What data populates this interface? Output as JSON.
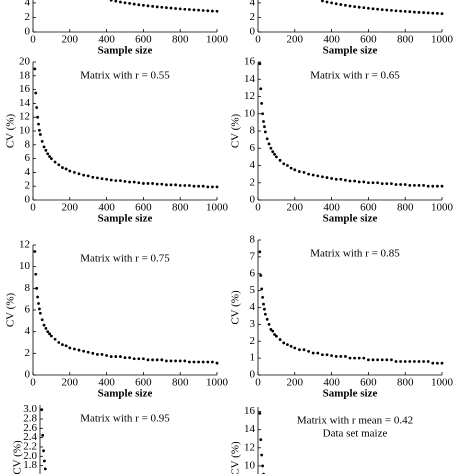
{
  "chart_data": [
    {
      "type": "scatter",
      "color": "#000000",
      "xlabel": "Sample size",
      "x": [
        425,
        450,
        475,
        500,
        525,
        550,
        575,
        600,
        625,
        650,
        675,
        700,
        725,
        750,
        775,
        800,
        825,
        850,
        875,
        900,
        925,
        950,
        975,
        1000
      ],
      "values": [
        4.37,
        4.24,
        4.13,
        4.02,
        3.93,
        3.84,
        3.75,
        3.67,
        3.6,
        3.53,
        3.46,
        3.4,
        3.34,
        3.29,
        3.23,
        3.18,
        3.13,
        3.09,
        3.04,
        3.0,
        2.96,
        2.92,
        2.88,
        2.85
      ],
      "xlim": [
        0,
        1000
      ],
      "xticks": [
        0,
        200,
        400,
        600,
        800,
        1000
      ],
      "ylim": [
        0,
        4.4
      ],
      "yticks": [
        0,
        2,
        4
      ]
    },
    {
      "type": "scatter",
      "color": "#000000",
      "xlabel": "Sample size",
      "x": [
        350,
        375,
        400,
        425,
        450,
        475,
        500,
        525,
        550,
        575,
        600,
        625,
        650,
        675,
        700,
        725,
        750,
        775,
        800,
        825,
        850,
        875,
        900,
        925,
        950,
        975,
        1000
      ],
      "values": [
        4.28,
        4.13,
        4.0,
        3.88,
        3.77,
        3.67,
        3.58,
        3.49,
        3.41,
        3.34,
        3.27,
        3.2,
        3.14,
        3.08,
        3.02,
        2.97,
        2.92,
        2.87,
        2.83,
        2.79,
        2.74,
        2.7,
        2.67,
        2.63,
        2.6,
        2.56,
        2.53
      ],
      "xlim": [
        0,
        1000
      ],
      "xticks": [
        0,
        200,
        400,
        600,
        800,
        1000
      ],
      "ylim": [
        0,
        4.4
      ],
      "yticks": [
        0,
        2,
        4
      ]
    },
    {
      "type": "scatter",
      "color": "#000000",
      "title": "Matrix with r = 0.55",
      "xlabel": "Sample size",
      "ylabel": "CV (%)",
      "x": [
        10,
        15,
        20,
        25,
        30,
        35,
        40,
        50,
        60,
        70,
        80,
        90,
        100,
        120,
        140,
        160,
        180,
        200,
        225,
        250,
        275,
        300,
        325,
        350,
        375,
        400,
        425,
        450,
        475,
        500,
        525,
        550,
        575,
        600,
        625,
        650,
        675,
        700,
        725,
        750,
        775,
        800,
        825,
        850,
        875,
        900,
        925,
        950,
        975,
        1000
      ],
      "values": [
        19.0,
        15.5,
        13.4,
        12.0,
        11.0,
        10.1,
        9.5,
        8.5,
        7.7,
        7.2,
        6.7,
        6.3,
        6.0,
        5.5,
        5.1,
        4.7,
        4.5,
        4.2,
        4.0,
        3.8,
        3.6,
        3.5,
        3.3,
        3.2,
        3.1,
        3.0,
        2.9,
        2.8,
        2.8,
        2.7,
        2.6,
        2.6,
        2.5,
        2.4,
        2.4,
        2.4,
        2.3,
        2.3,
        2.2,
        2.2,
        2.2,
        2.1,
        2.1,
        2.1,
        2.0,
        2.0,
        2.0,
        1.9,
        1.9,
        1.9
      ],
      "xlim": [
        0,
        1000
      ],
      "xticks": [
        0,
        200,
        400,
        600,
        800,
        1000
      ],
      "ylim": [
        0,
        20
      ],
      "yticks": [
        0,
        2,
        4,
        6,
        8,
        10,
        12,
        14,
        16,
        18,
        20
      ]
    },
    {
      "type": "scatter",
      "color": "#000000",
      "title": "Matrix with r = 0.65",
      "xlabel": "Sample size",
      "ylabel": "CV (%)",
      "x": [
        10,
        15,
        20,
        25,
        30,
        35,
        40,
        50,
        60,
        70,
        80,
        90,
        100,
        120,
        140,
        160,
        180,
        200,
        225,
        250,
        275,
        300,
        325,
        350,
        375,
        400,
        425,
        450,
        475,
        500,
        525,
        550,
        575,
        600,
        625,
        650,
        675,
        700,
        725,
        750,
        775,
        800,
        825,
        850,
        875,
        900,
        925,
        950,
        975,
        1000
      ],
      "values": [
        15.8,
        12.9,
        11.2,
        10.0,
        9.1,
        8.5,
        7.9,
        7.1,
        6.5,
        6.0,
        5.6,
        5.3,
        5.0,
        4.6,
        4.2,
        4.0,
        3.7,
        3.5,
        3.3,
        3.2,
        3.0,
        2.9,
        2.8,
        2.7,
        2.6,
        2.5,
        2.4,
        2.4,
        2.3,
        2.2,
        2.2,
        2.1,
        2.1,
        2.0,
        2.0,
        2.0,
        1.9,
        1.9,
        1.9,
        1.8,
        1.8,
        1.8,
        1.7,
        1.7,
        1.7,
        1.7,
        1.6,
        1.6,
        1.6,
        1.6
      ],
      "xlim": [
        0,
        1000
      ],
      "xticks": [
        0,
        200,
        400,
        600,
        800,
        1000
      ],
      "ylim": [
        0,
        16
      ],
      "yticks": [
        0,
        2,
        4,
        6,
        8,
        10,
        12,
        14,
        16
      ]
    },
    {
      "type": "scatter",
      "color": "#000000",
      "title": "Matrix with r = 0.75",
      "xlabel": "Sample size",
      "ylabel": "CV (%)",
      "x": [
        10,
        15,
        20,
        25,
        30,
        35,
        40,
        50,
        60,
        70,
        80,
        90,
        100,
        120,
        140,
        160,
        180,
        200,
        225,
        250,
        275,
        300,
        325,
        350,
        375,
        400,
        425,
        450,
        475,
        500,
        525,
        550,
        575,
        600,
        625,
        650,
        675,
        700,
        725,
        750,
        775,
        800,
        825,
        850,
        875,
        900,
        925,
        950,
        975,
        1000
      ],
      "values": [
        11.4,
        9.3,
        8.0,
        7.2,
        6.6,
        6.1,
        5.7,
        5.1,
        4.6,
        4.3,
        4.0,
        3.8,
        3.6,
        3.3,
        3.0,
        2.8,
        2.7,
        2.5,
        2.4,
        2.3,
        2.2,
        2.1,
        2.0,
        1.9,
        1.9,
        1.8,
        1.7,
        1.7,
        1.7,
        1.6,
        1.6,
        1.5,
        1.5,
        1.5,
        1.4,
        1.4,
        1.4,
        1.4,
        1.3,
        1.3,
        1.3,
        1.3,
        1.3,
        1.2,
        1.2,
        1.2,
        1.2,
        1.2,
        1.2,
        1.1
      ],
      "xlim": [
        0,
        1000
      ],
      "xticks": [
        0,
        200,
        400,
        600,
        800,
        1000
      ],
      "ylim": [
        0,
        12
      ],
      "yticks": [
        0,
        2,
        4,
        6,
        8,
        10,
        12
      ]
    },
    {
      "type": "scatter",
      "color": "#000000",
      "title": "Matrix with r = 0.85",
      "xlabel": "Sample size",
      "ylabel": "CV (%)",
      "x": [
        10,
        15,
        20,
        25,
        30,
        35,
        40,
        50,
        60,
        70,
        80,
        90,
        100,
        120,
        140,
        160,
        180,
        200,
        225,
        250,
        275,
        300,
        325,
        350,
        375,
        400,
        425,
        450,
        475,
        500,
        525,
        550,
        575,
        600,
        625,
        650,
        675,
        700,
        725,
        750,
        775,
        800,
        825,
        850,
        875,
        900,
        925,
        950,
        975,
        1000
      ],
      "values": [
        7.3,
        5.9,
        5.1,
        4.6,
        4.2,
        3.9,
        3.6,
        3.3,
        3.0,
        2.7,
        2.6,
        2.4,
        2.3,
        2.1,
        1.9,
        1.8,
        1.7,
        1.6,
        1.5,
        1.5,
        1.4,
        1.3,
        1.3,
        1.2,
        1.2,
        1.15,
        1.1,
        1.1,
        1.1,
        1.0,
        1.0,
        1.0,
        1.0,
        0.9,
        0.9,
        0.9,
        0.9,
        0.9,
        0.9,
        0.8,
        0.8,
        0.8,
        0.8,
        0.8,
        0.8,
        0.8,
        0.8,
        0.7,
        0.7,
        0.7
      ],
      "xlim": [
        0,
        1000
      ],
      "xticks": [
        0,
        200,
        400,
        600,
        800,
        1000
      ],
      "ylim": [
        0,
        8
      ],
      "yticks": [
        0,
        1,
        2,
        3,
        4,
        5,
        6,
        7,
        8
      ]
    },
    {
      "type": "scatter",
      "color": "#000000",
      "title": "Matrix with r = 0.95",
      "ylabel": "CV (%)",
      "x": [
        10,
        15,
        20,
        25,
        30
      ],
      "values": [
        3.0,
        2.45,
        2.12,
        1.9,
        1.73
      ],
      "xlim": [
        0,
        1000
      ],
      "ylim": [
        1.6,
        3.1
      ],
      "yticks": [
        {
          "value": 1.8,
          "label": "1.8"
        },
        {
          "value": 2,
          "label": "2.0"
        },
        2.2,
        2.4,
        2.6,
        2.8,
        {
          "value": 3,
          "label": "3.0"
        }
      ]
    },
    {
      "type": "scatter",
      "color": "#000000",
      "title": "Matrix with r mean = 0.42",
      "subtitle": "Data set maize",
      "ylabel": "CV (%)",
      "x": [
        10,
        15,
        20,
        25,
        30
      ],
      "values": [
        15.8,
        12.9,
        11.2,
        10.0,
        9.1
      ],
      "xlim": [
        0,
        1000
      ],
      "ylim": [
        9,
        16.5
      ],
      "yticks": [
        10,
        12,
        14,
        16
      ]
    }
  ]
}
